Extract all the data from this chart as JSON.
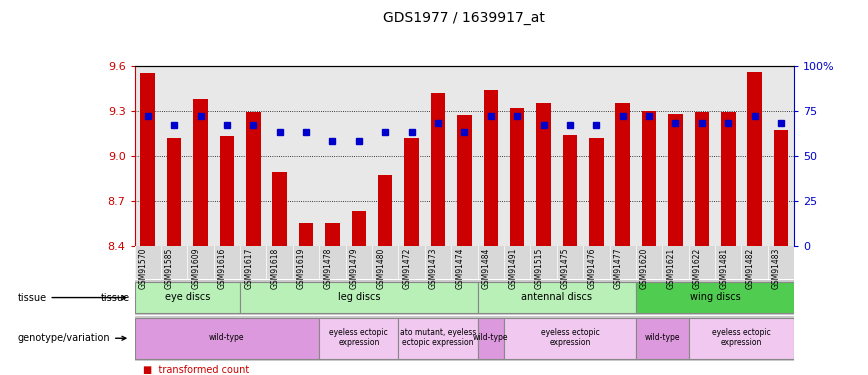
{
  "title": "GDS1977 / 1639917_at",
  "samples": [
    "GSM91570",
    "GSM91585",
    "GSM91609",
    "GSM91616",
    "GSM91617",
    "GSM91618",
    "GSM91619",
    "GSM91478",
    "GSM91479",
    "GSM91480",
    "GSM91472",
    "GSM91473",
    "GSM91474",
    "GSM91484",
    "GSM91491",
    "GSM91515",
    "GSM91475",
    "GSM91476",
    "GSM91477",
    "GSM91620",
    "GSM91621",
    "GSM91622",
    "GSM91481",
    "GSM91482",
    "GSM91483"
  ],
  "red_values": [
    9.55,
    9.12,
    9.38,
    9.13,
    9.29,
    8.89,
    8.55,
    8.55,
    8.63,
    8.87,
    9.12,
    9.42,
    9.27,
    9.44,
    9.32,
    9.35,
    9.14,
    9.12,
    9.35,
    9.3,
    9.28,
    9.29,
    9.29,
    9.56,
    9.17
  ],
  "blue_fracs": [
    0.72,
    0.67,
    0.72,
    0.67,
    0.67,
    0.63,
    0.63,
    0.58,
    0.58,
    0.63,
    0.63,
    0.68,
    0.63,
    0.72,
    0.72,
    0.67,
    0.67,
    0.67,
    0.72,
    0.72,
    0.68,
    0.68,
    0.68,
    0.72,
    0.68
  ],
  "ymin": 8.4,
  "ymax": 9.6,
  "yticks": [
    8.4,
    8.7,
    9.0,
    9.3,
    9.6
  ],
  "right_yticks": [
    0,
    25,
    50,
    75,
    100
  ],
  "right_yticklabels": [
    "0",
    "25",
    "50",
    "75",
    "100%"
  ],
  "tissue_groups": [
    {
      "label": "eye discs",
      "start": 0,
      "end": 3,
      "color": "#b8f0b8"
    },
    {
      "label": "leg discs",
      "start": 4,
      "end": 12,
      "color": "#b8f0b8"
    },
    {
      "label": "antennal discs",
      "start": 13,
      "end": 18,
      "color": "#b8f0b8"
    },
    {
      "label": "wing discs",
      "start": 19,
      "end": 24,
      "color": "#50cc50"
    }
  ],
  "genotype_groups": [
    {
      "label": "wild-type",
      "start": 0,
      "end": 6,
      "color": "#dd99dd"
    },
    {
      "label": "eyeless ectopic\nexpression",
      "start": 7,
      "end": 9,
      "color": "#f0c8f0"
    },
    {
      "label": "ato mutant, eyeless\nectopic expression",
      "start": 10,
      "end": 12,
      "color": "#f0c8f0"
    },
    {
      "label": "wild-type",
      "start": 13,
      "end": 13,
      "color": "#dd99dd"
    },
    {
      "label": "eyeless ectopic\nexpression",
      "start": 14,
      "end": 18,
      "color": "#f0c8f0"
    },
    {
      "label": "wild-type",
      "start": 19,
      "end": 20,
      "color": "#dd99dd"
    },
    {
      "label": "eyeless ectopic\nexpression",
      "start": 21,
      "end": 24,
      "color": "#f0c8f0"
    }
  ],
  "bar_color": "#cc0000",
  "dot_color": "#0000cc",
  "plot_bg_color": "#e8e8e8",
  "grid_color": "#000000",
  "left_axis_color": "#cc0000",
  "right_axis_color": "#0000cc"
}
